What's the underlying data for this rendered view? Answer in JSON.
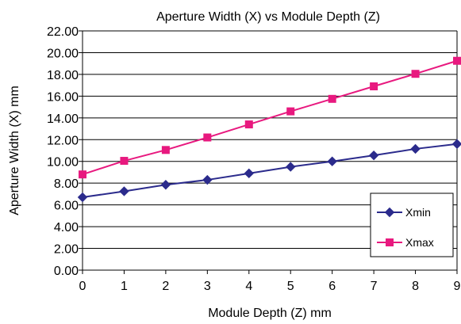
{
  "chart_data": {
    "type": "line",
    "title": "Aperture Width (X) vs Module Depth (Z)",
    "xlabel": "Module Depth (Z) mm",
    "ylabel": "Aperture Width (X) mm",
    "x": [
      0,
      1,
      2,
      3,
      4,
      5,
      6,
      7,
      8,
      9
    ],
    "xlim": [
      0,
      9
    ],
    "ylim": [
      0,
      22
    ],
    "y_ticks": [
      "0.00",
      "2.00",
      "4.00",
      "6.00",
      "8.00",
      "10.00",
      "12.00",
      "14.00",
      "16.00",
      "18.00",
      "20.00",
      "22.00"
    ],
    "x_ticks": [
      "0",
      "1",
      "2",
      "3",
      "4",
      "5",
      "6",
      "7",
      "8",
      "9"
    ],
    "grid": "horizontal",
    "legend_position": "bottom-right",
    "series": [
      {
        "name": "Xmin",
        "marker": "diamond",
        "color": "#2b2b8c",
        "values": [
          6.7,
          7.25,
          7.85,
          8.3,
          8.9,
          9.5,
          10.0,
          10.55,
          11.15,
          11.6
        ]
      },
      {
        "name": "Xmax",
        "marker": "square",
        "color": "#e8197f",
        "values": [
          8.8,
          10.05,
          11.05,
          12.2,
          13.4,
          14.6,
          15.75,
          16.9,
          18.05,
          19.25
        ]
      }
    ]
  }
}
